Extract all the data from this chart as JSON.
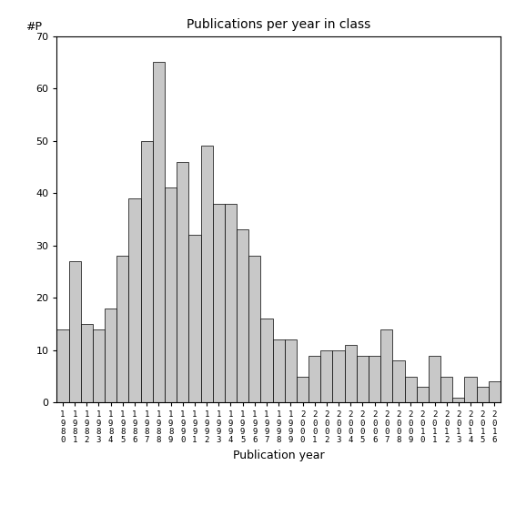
{
  "title": "Publications per year in class",
  "xlabel": "Publication year",
  "ylabel": "#P",
  "ylim": [
    0,
    70
  ],
  "yticks": [
    0,
    10,
    20,
    30,
    40,
    50,
    60,
    70
  ],
  "years": [
    "1980",
    "1981",
    "1982",
    "1983",
    "1984",
    "1985",
    "1986",
    "1987",
    "1988",
    "1989",
    "1990",
    "1991",
    "1992",
    "1993",
    "1994",
    "1995",
    "1996",
    "1997",
    "1998",
    "1999",
    "2000",
    "2001",
    "2002",
    "2003",
    "2004",
    "2005",
    "2006",
    "2007",
    "2008",
    "2009",
    "2010",
    "2011",
    "2012",
    "2013",
    "2014",
    "2015",
    "2016"
  ],
  "values": [
    14,
    27,
    15,
    14,
    18,
    28,
    39,
    50,
    65,
    41,
    46,
    32,
    49,
    38,
    38,
    33,
    28,
    16,
    12,
    12,
    5,
    9,
    10,
    10,
    11,
    9,
    9,
    14,
    8,
    5,
    3,
    9,
    5,
    1,
    5,
    3,
    4
  ],
  "bar_color": "#c8c8c8",
  "bar_edgecolor": "#000000",
  "background_color": "#ffffff"
}
